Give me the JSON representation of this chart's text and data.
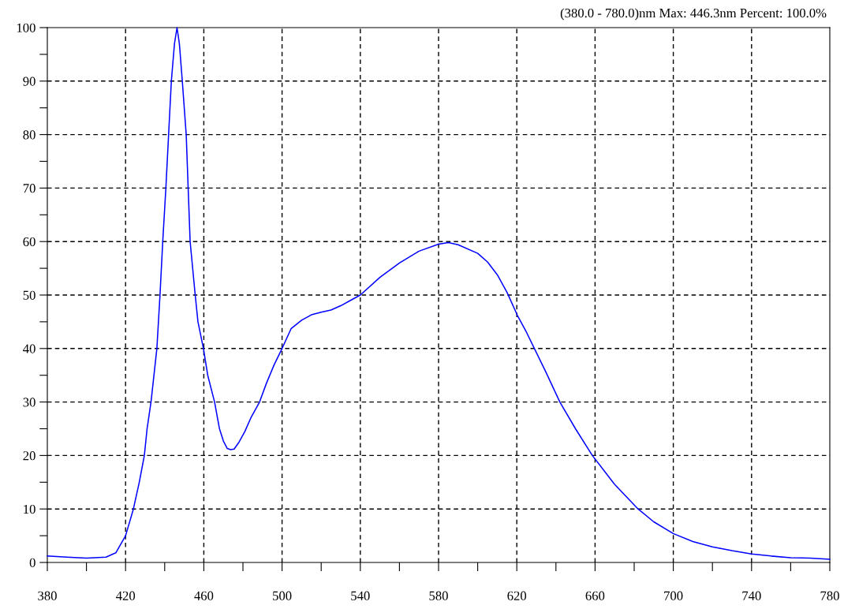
{
  "chart_data": {
    "type": "line",
    "annotations": [
      "(380.0 - 780.0)nm Max: 446.3nm Percent: 100.0%"
    ],
    "x": [
      380,
      390,
      400,
      410,
      415,
      420,
      424,
      427,
      429.6,
      431,
      433,
      436,
      437.6,
      439,
      440.6,
      442,
      443.4,
      445,
      446.3,
      447.5,
      449,
      451,
      452,
      453,
      455.6,
      457,
      459.8,
      462,
      465.5,
      468,
      470,
      472,
      473.7,
      475.5,
      478,
      481,
      484,
      488.5,
      492,
      496,
      500,
      504.6,
      510,
      515,
      520,
      525,
      530,
      535,
      540,
      550,
      560,
      570,
      580,
      585,
      590,
      600,
      605,
      610,
      615,
      620.3,
      625,
      629,
      635,
      642,
      650,
      658.6,
      670,
      682,
      690,
      700,
      710,
      720,
      730,
      740,
      750,
      760,
      770,
      780
    ],
    "series": [
      {
        "color": "#0000ff",
        "values": [
          1.2,
          1.0,
          0.8,
          1.0,
          1.8,
          5,
          10,
          15,
          20,
          25,
          30,
          40,
          50,
          60,
          70,
          80,
          90,
          97,
          100,
          97,
          90,
          80,
          70,
          60,
          50,
          45,
          40,
          35,
          30,
          25,
          22.7,
          21.3,
          21.1,
          21.2,
          22.5,
          24.5,
          27,
          30,
          33.5,
          37,
          40,
          43.7,
          45.3,
          46.3,
          46.8,
          47.2,
          48,
          49,
          50,
          53.3,
          56,
          58.2,
          59.5,
          59.8,
          59.4,
          57.8,
          56.2,
          53.8,
          50.5,
          46.2,
          43,
          40,
          35.5,
          30,
          25,
          20,
          14.6,
          10,
          7.6,
          5.4,
          3.9,
          2.9,
          2.2,
          1.6,
          1.2,
          0.9,
          0.8,
          0.6
        ]
      }
    ],
    "xlim": [
      380,
      780
    ],
    "ylim": [
      0,
      100
    ],
    "xticks": [
      380,
      {
        "value": 400,
        "label": null
      },
      420,
      {
        "value": 440,
        "label": null
      },
      460,
      {
        "value": 480,
        "label": null
      },
      500,
      {
        "value": 520,
        "label": null
      },
      540,
      {
        "value": 560,
        "label": null
      },
      580,
      {
        "value": 600,
        "label": null
      },
      620,
      {
        "value": 640,
        "label": null
      },
      660,
      {
        "value": 680,
        "label": null
      },
      700,
      {
        "value": 720,
        "label": null
      },
      740,
      {
        "value": 760,
        "label": null
      },
      780
    ],
    "yticks": [
      0,
      {
        "value": 5,
        "label": null
      },
      10,
      {
        "value": 15,
        "label": null
      },
      20,
      {
        "value": 25,
        "label": null
      },
      30,
      {
        "value": 35,
        "label": null
      },
      40,
      {
        "value": 45,
        "label": null
      },
      50,
      {
        "value": 55,
        "label": null
      },
      60,
      {
        "value": 65,
        "label": null
      },
      70,
      {
        "value": 75,
        "label": null
      },
      80,
      {
        "value": 85,
        "label": null
      },
      90,
      {
        "value": 95,
        "label": null
      },
      100
    ],
    "grid": true,
    "line_style": "solid",
    "marker": "none"
  }
}
